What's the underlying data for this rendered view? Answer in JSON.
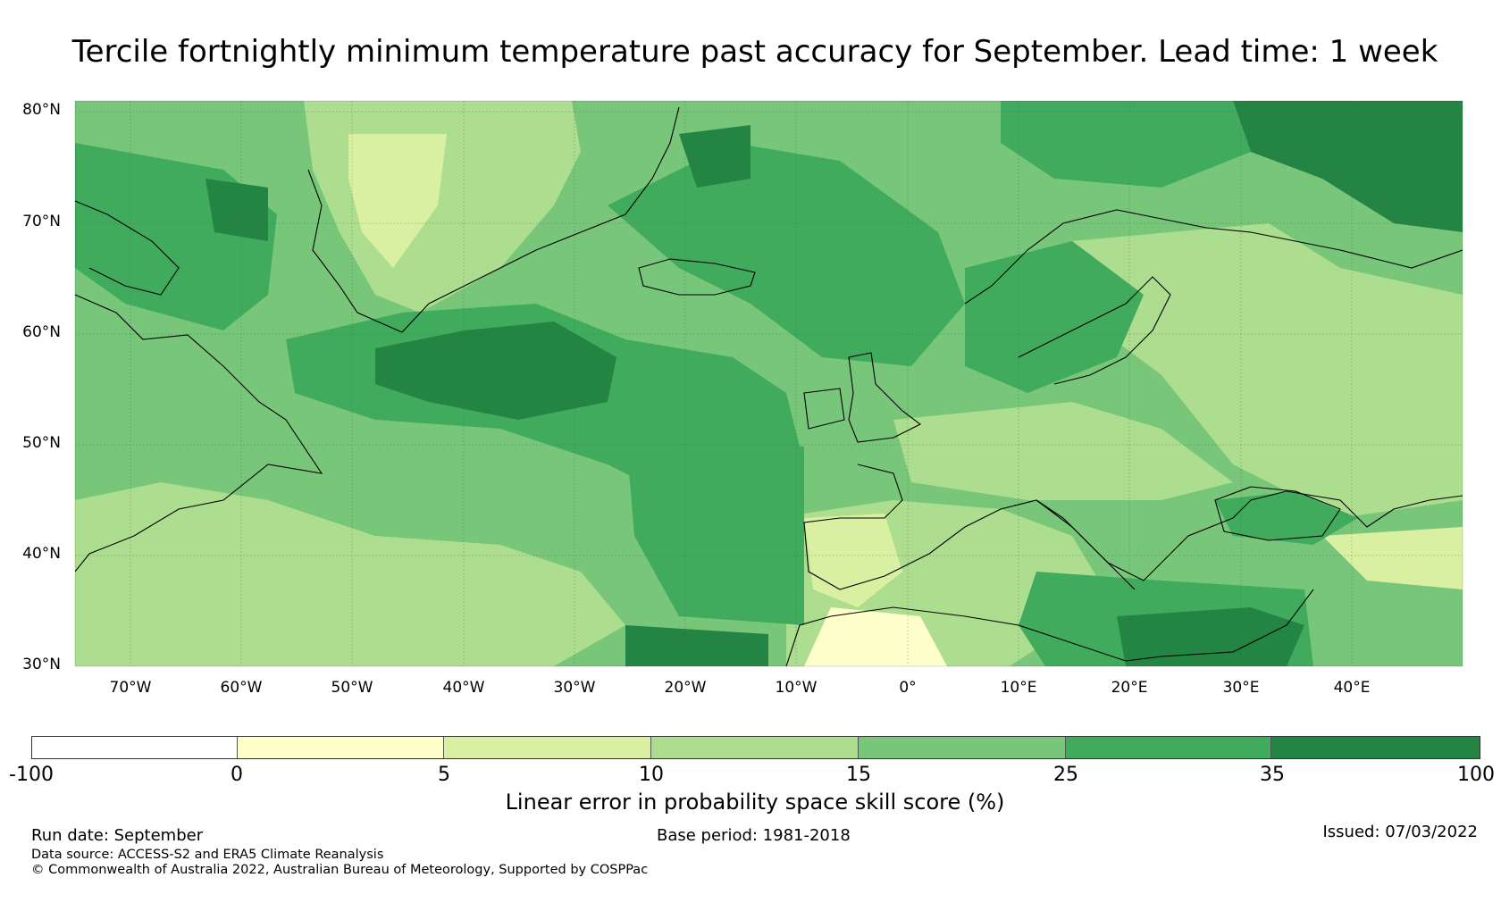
{
  "title": "Tercile fortnightly minimum temperature past accuracy for September. Lead time: 1 week",
  "map": {
    "lat_labels": [
      "80°N",
      "70°N",
      "60°N",
      "50°N",
      "40°N",
      "30°N"
    ],
    "lon_labels": [
      "70°W",
      "60°W",
      "50°W",
      "40°W",
      "30°W",
      "20°W",
      "10°W",
      "0°",
      "10°E",
      "20°E",
      "30°E",
      "40°E"
    ],
    "lat_range": [
      30,
      81
    ],
    "lon_range": [
      -75,
      50
    ],
    "regions_description": "Skill mostly 15-35% over North Atlantic, highest (35-100) south of Greenland, northeast Barents area and eastern Mediterranean; lower skill 0-10 over Iberia, North Africa and Greenland interior."
  },
  "colorbar": {
    "label": "Linear error in probability space skill score (%)",
    "ticks": [
      "-100",
      "0",
      "5",
      "10",
      "15",
      "25",
      "35",
      "100"
    ],
    "bins": [
      {
        "range": "-100 to 0",
        "color": "#ffffff"
      },
      {
        "range": "0 to 5",
        "color": "#ffffcc"
      },
      {
        "range": "5 to 10",
        "color": "#d9f0a3"
      },
      {
        "range": "10 to 15",
        "color": "#addd8e"
      },
      {
        "range": "15 to 25",
        "color": "#78c679"
      },
      {
        "range": "25 to 35",
        "color": "#41ab5d"
      },
      {
        "range": "35 to 100",
        "color": "#238443"
      }
    ]
  },
  "footer": {
    "run_date": "Run date: September",
    "base_period": "Base period: 1981-2018",
    "issued": "Issued: 07/03/2022",
    "data_source": "Data source: ACCESS-S2 and ERA5 Climate Reanalysis",
    "copyright": "© Commonwealth of Australia 2022, Australian Bureau of Meteorology, Supported by COSPPac"
  }
}
